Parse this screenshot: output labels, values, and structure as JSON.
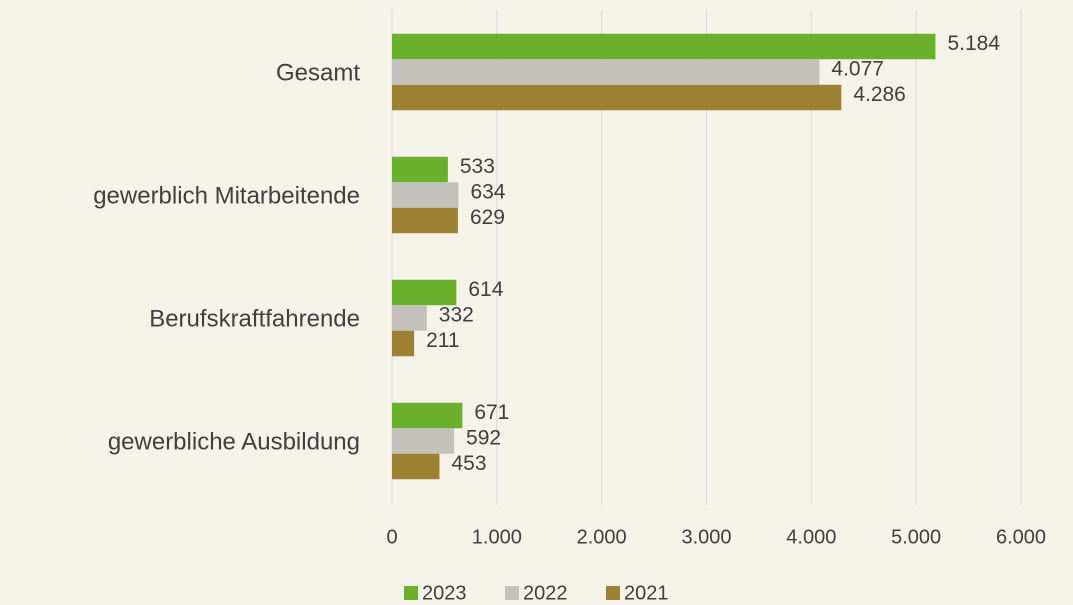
{
  "chart_data": {
    "type": "bar",
    "orientation": "horizontal",
    "categories": [
      "Gesamt",
      "gewerblich Mitarbeitende",
      "Berufskraftfahrende",
      "gewerbliche Ausbildung"
    ],
    "series": [
      {
        "name": "2023",
        "color": "#6ab02c",
        "values": [
          5184,
          533,
          614,
          671
        ],
        "value_labels": [
          "5.184",
          "533",
          "614",
          "671"
        ]
      },
      {
        "name": "2022",
        "color": "#c2c1bc",
        "values": [
          4077,
          634,
          332,
          592
        ],
        "value_labels": [
          "4.077",
          "634",
          "332",
          "592"
        ]
      },
      {
        "name": "2021",
        "color": "#9c8133",
        "values": [
          4286,
          629,
          211,
          453
        ],
        "value_labels": [
          "4.286",
          "629",
          "211",
          "453"
        ]
      }
    ],
    "xlim": [
      0,
      6000
    ],
    "xticks": [
      0,
      {
        "value": 1000,
        "label": "1.000"
      },
      {
        "value": 2000,
        "label": "2.000"
      },
      {
        "value": 3000,
        "label": "3.000"
      },
      {
        "value": 4000,
        "label": "4.000"
      },
      {
        "value": 5000,
        "label": "5.000"
      },
      {
        "value": 6000,
        "label": "6.000"
      }
    ],
    "grid": true,
    "legend": "bottom"
  }
}
